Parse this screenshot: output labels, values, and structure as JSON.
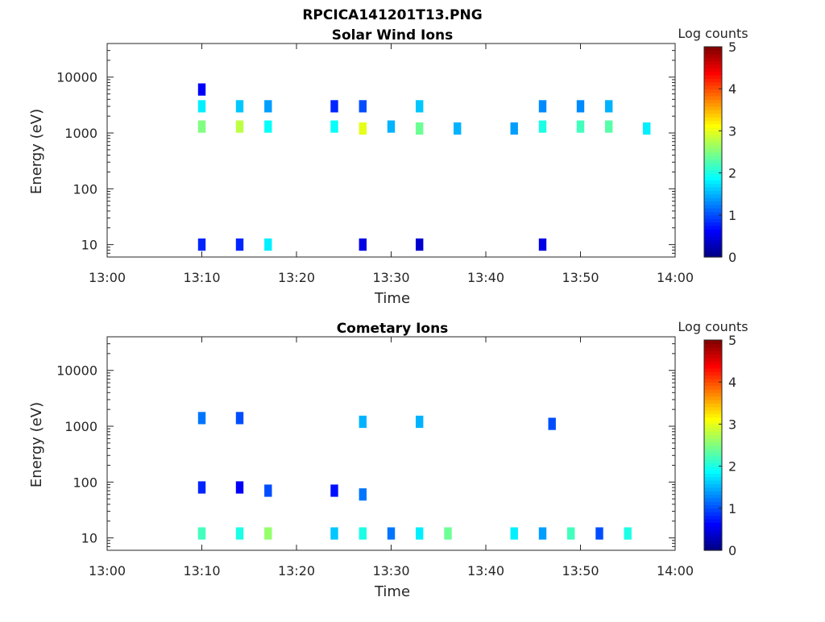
{
  "figure": {
    "title": "RPCICA141201T13.PNG"
  },
  "colorbar": {
    "label": "Log counts",
    "ticks": [
      "0",
      "1",
      "2",
      "3",
      "4",
      "5"
    ],
    "range": [
      0,
      5
    ],
    "colormap": "jet"
  },
  "chart_data": [
    {
      "type": "heatmap",
      "title": "Solar Wind Ions",
      "xlabel": "Time",
      "ylabel": "Energy (eV)",
      "x_ticks": [
        "13:00",
        "13:10",
        "13:20",
        "13:30",
        "13:40",
        "13:50",
        "14:00"
      ],
      "x_range": [
        "13:00",
        "14:00"
      ],
      "y_scale": "log",
      "y_ticks": [
        "10",
        "100",
        "1000",
        "10000"
      ],
      "y_range": [
        6,
        40000
      ],
      "color_range": [
        0,
        5
      ],
      "cells": [
        {
          "t": "13:10",
          "e": 1300,
          "c": 2.5
        },
        {
          "t": "13:10",
          "e": 3000,
          "c": 1.8
        },
        {
          "t": "13:10",
          "e": 6000,
          "c": 0.6
        },
        {
          "t": "13:10",
          "e": 10,
          "c": 0.8
        },
        {
          "t": "13:14",
          "e": 1300,
          "c": 2.8
        },
        {
          "t": "13:14",
          "e": 3000,
          "c": 1.6
        },
        {
          "t": "13:14",
          "e": 10,
          "c": 0.8
        },
        {
          "t": "13:17",
          "e": 1300,
          "c": 1.9
        },
        {
          "t": "13:17",
          "e": 3000,
          "c": 1.4
        },
        {
          "t": "13:17",
          "e": 10,
          "c": 1.8
        },
        {
          "t": "13:24",
          "e": 1300,
          "c": 1.9
        },
        {
          "t": "13:24",
          "e": 3000,
          "c": 0.8
        },
        {
          "t": "13:27",
          "e": 1200,
          "c": 3.0
        },
        {
          "t": "13:27",
          "e": 3000,
          "c": 1.0
        },
        {
          "t": "13:27",
          "e": 10,
          "c": 0.5
        },
        {
          "t": "13:30",
          "e": 1300,
          "c": 1.5
        },
        {
          "t": "13:33",
          "e": 1200,
          "c": 2.4
        },
        {
          "t": "13:33",
          "e": 3000,
          "c": 1.6
        },
        {
          "t": "13:33",
          "e": 10,
          "c": 0.4
        },
        {
          "t": "13:37",
          "e": 1200,
          "c": 1.5
        },
        {
          "t": "13:43",
          "e": 1200,
          "c": 1.4
        },
        {
          "t": "13:46",
          "e": 1300,
          "c": 2.0
        },
        {
          "t": "13:46",
          "e": 3000,
          "c": 1.3
        },
        {
          "t": "13:46",
          "e": 10,
          "c": 0.5
        },
        {
          "t": "13:50",
          "e": 1300,
          "c": 2.2
        },
        {
          "t": "13:50",
          "e": 3000,
          "c": 1.3
        },
        {
          "t": "13:53",
          "e": 1300,
          "c": 2.3
        },
        {
          "t": "13:53",
          "e": 3000,
          "c": 1.5
        },
        {
          "t": "13:57",
          "e": 1200,
          "c": 1.8
        }
      ]
    },
    {
      "type": "heatmap",
      "title": "Cometary Ions",
      "xlabel": "Time",
      "ylabel": "Energy (eV)",
      "x_ticks": [
        "13:00",
        "13:10",
        "13:20",
        "13:30",
        "13:40",
        "13:50",
        "14:00"
      ],
      "x_range": [
        "13:00",
        "14:00"
      ],
      "y_scale": "log",
      "y_ticks": [
        "10",
        "100",
        "1000",
        "10000"
      ],
      "y_range": [
        6,
        40000
      ],
      "color_range": [
        0,
        5
      ],
      "cells": [
        {
          "t": "13:10",
          "e": 12,
          "c": 2.2
        },
        {
          "t": "13:10",
          "e": 80,
          "c": 0.8
        },
        {
          "t": "13:10",
          "e": 1400,
          "c": 1.2
        },
        {
          "t": "13:14",
          "e": 12,
          "c": 2.0
        },
        {
          "t": "13:14",
          "e": 80,
          "c": 0.6
        },
        {
          "t": "13:14",
          "e": 1400,
          "c": 1.0
        },
        {
          "t": "13:17",
          "e": 12,
          "c": 2.6
        },
        {
          "t": "13:17",
          "e": 70,
          "c": 1.0
        },
        {
          "t": "13:24",
          "e": 12,
          "c": 1.6
        },
        {
          "t": "13:24",
          "e": 70,
          "c": 0.7
        },
        {
          "t": "13:27",
          "e": 12,
          "c": 2.0
        },
        {
          "t": "13:27",
          "e": 60,
          "c": 1.2
        },
        {
          "t": "13:27",
          "e": 1200,
          "c": 1.5
        },
        {
          "t": "13:30",
          "e": 12,
          "c": 1.2
        },
        {
          "t": "13:33",
          "e": 12,
          "c": 1.8
        },
        {
          "t": "13:33",
          "e": 1200,
          "c": 1.5
        },
        {
          "t": "13:36",
          "e": 12,
          "c": 2.4
        },
        {
          "t": "13:43",
          "e": 12,
          "c": 1.8
        },
        {
          "t": "13:46",
          "e": 12,
          "c": 1.4
        },
        {
          "t": "13:47",
          "e": 1100,
          "c": 1.0
        },
        {
          "t": "13:49",
          "e": 12,
          "c": 2.2
        },
        {
          "t": "13:52",
          "e": 12,
          "c": 1.0
        },
        {
          "t": "13:55",
          "e": 12,
          "c": 2.0
        }
      ]
    }
  ]
}
